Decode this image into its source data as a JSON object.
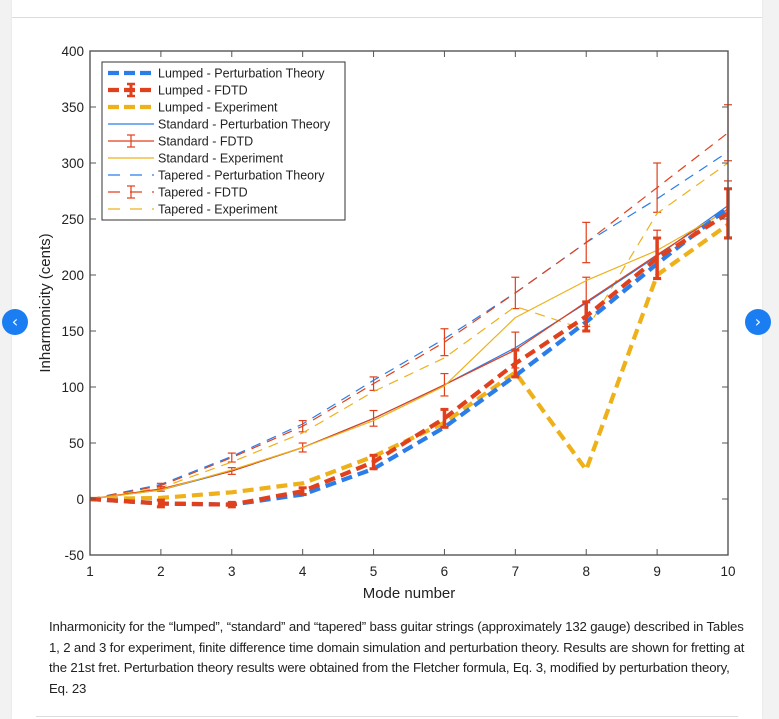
{
  "nav": {
    "prev_icon": "‹",
    "next_icon": "›"
  },
  "caption": "Inharmonicity for the “lumped”, “standard” and “tapered” bass guitar strings (approximately 132 gauge) described in Tables 1, 2 and 3 for experiment, finite difference time domain simulation and perturbation theory. Results are shown for fretting at the 21st fret. Perturbation theory results were obtained from the Fletcher formula, Eq. 3, modified by perturbation theory, Eq. 23",
  "colors": {
    "blue": "#2b7de9",
    "red": "#e0401c",
    "yellow": "#eeb11a",
    "axis": "#555555"
  },
  "chart_data": {
    "type": "line",
    "title": "",
    "xlabel": "Mode number",
    "ylabel": "Inharmonicity (cents)",
    "xlim": [
      1,
      10
    ],
    "ylim": [
      -50,
      400
    ],
    "xticks": [
      1,
      2,
      3,
      4,
      5,
      6,
      7,
      8,
      9,
      10
    ],
    "yticks": [
      -50,
      0,
      50,
      100,
      150,
      200,
      250,
      300,
      350,
      400
    ],
    "grid": false,
    "legend_position": "top-left",
    "x": [
      1,
      2,
      3,
      4,
      5,
      6,
      7,
      8,
      9,
      10
    ],
    "series": [
      {
        "name": "Lumped - Perturbation Theory",
        "color": "blue",
        "style": "thick-dashed",
        "values": [
          0,
          -4,
          -5,
          4,
          27,
          64,
          110,
          158,
          210,
          260
        ]
      },
      {
        "name": "Lumped - FDTD",
        "color": "red",
        "style": "thick-dashed-errorbar",
        "values": [
          0,
          -4,
          -5,
          7,
          33,
          72,
          121,
          163,
          215,
          255
        ],
        "errors": [
          0,
          3,
          2,
          3,
          6,
          8,
          12,
          13,
          18,
          22
        ]
      },
      {
        "name": "Lumped - Experiment",
        "color": "yellow",
        "style": "thick-dashed",
        "values": [
          0,
          1,
          6,
          14,
          38,
          68,
          113,
          26,
          200,
          245
        ]
      },
      {
        "name": "Standard - Perturbation Theory",
        "color": "blue",
        "style": "thin-solid",
        "values": [
          0,
          8,
          25,
          46,
          72,
          102,
          135,
          175,
          217,
          262
        ]
      },
      {
        "name": "Standard - FDTD",
        "color": "red",
        "style": "thin-solid-errorbar",
        "values": [
          0,
          9,
          25,
          46,
          72,
          102,
          133,
          176,
          218,
          259
        ],
        "errors": [
          0,
          2,
          3,
          4,
          7,
          10,
          16,
          22,
          22,
          25
        ]
      },
      {
        "name": "Standard - Experiment",
        "color": "yellow",
        "style": "thin-solid",
        "values": [
          0,
          8,
          26,
          46,
          70,
          101,
          162,
          195,
          222,
          258
        ]
      },
      {
        "name": "Tapered - Perturbation Theory",
        "color": "blue",
        "style": "thin-dashed",
        "values": [
          0,
          13,
          38,
          67,
          106,
          143,
          184,
          229,
          268,
          310
        ]
      },
      {
        "name": "Tapered - FDTD",
        "color": "red",
        "style": "thin-dashed-errorbar",
        "values": [
          0,
          12,
          37,
          65,
          103,
          140,
          184,
          229,
          278,
          327
        ],
        "errors": [
          0,
          2,
          4,
          5,
          6,
          12,
          14,
          18,
          22,
          25
        ]
      },
      {
        "name": "Tapered - Experiment",
        "color": "yellow",
        "style": "thin-dashed",
        "values": [
          0,
          10,
          33,
          59,
          96,
          126,
          172,
          151,
          255,
          300
        ]
      }
    ]
  }
}
